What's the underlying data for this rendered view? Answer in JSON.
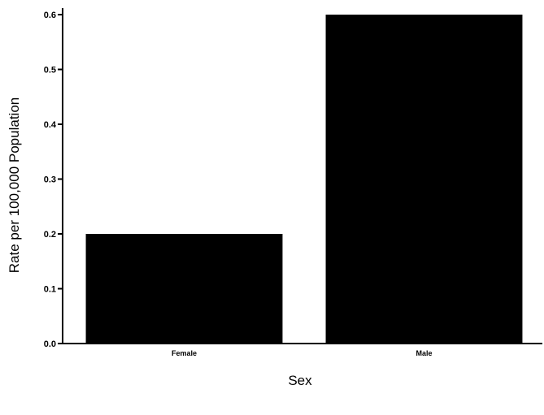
{
  "chart_data": {
    "type": "bar",
    "title": "",
    "xlabel": "Sex",
    "ylabel": "Rate per 100,000 Population",
    "categories": [
      "Female",
      "Male"
    ],
    "values": [
      0.2,
      0.6
    ],
    "ylim": [
      0,
      0.6
    ],
    "yticks": [
      0.0,
      0.1,
      0.2,
      0.3,
      0.4,
      0.5,
      0.6
    ],
    "ytick_labels": [
      "0.0",
      "0.1",
      "0.2",
      "0.3",
      "0.4",
      "0.5",
      "0.6"
    ],
    "grid": false,
    "legend": "none",
    "bar_color": "#000000"
  }
}
